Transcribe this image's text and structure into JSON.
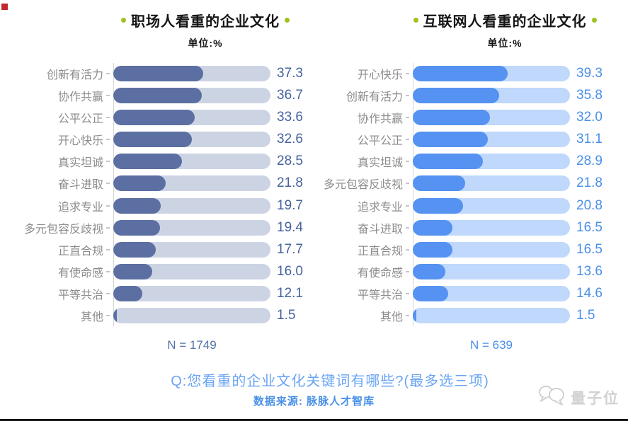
{
  "chart_data": [
    {
      "type": "bar",
      "orientation": "horizontal",
      "title": "职场人看重的企业文化",
      "unit": "单位:%",
      "sample": "N = 1749",
      "categories": [
        "创新有活力",
        "协作共赢",
        "公平公正",
        "开心快乐",
        "真实坦诚",
        "奋斗进取",
        "追求专业",
        "多元包容反歧视",
        "正直合规",
        "有使命感",
        "平等共治",
        "其他"
      ],
      "values": [
        37.3,
        36.7,
        33.6,
        32.6,
        28.5,
        21.8,
        19.7,
        19.4,
        17.7,
        16.0,
        12.1,
        1.5
      ],
      "xlim": [
        0,
        65
      ],
      "legend": "none",
      "grid": false,
      "bar_color": "#5c6fa2",
      "track_color": "#ccd4e4",
      "value_color": "#46639e",
      "sample_color": "#5373a9"
    },
    {
      "type": "bar",
      "orientation": "horizontal",
      "title": "互联网人看重的企业文化",
      "unit": "单位:%",
      "sample": "N = 639",
      "categories": [
        "开心快乐",
        "创新有活力",
        "协作共赢",
        "公平公正",
        "真实坦诚",
        "多元包容反歧视",
        "追求专业",
        "奋斗进取",
        "正直合规",
        "有使命感",
        "平等共治",
        "其他"
      ],
      "values": [
        39.3,
        35.8,
        32.0,
        31.1,
        28.9,
        21.8,
        20.8,
        16.5,
        16.5,
        13.6,
        14.6,
        1.5
      ],
      "xlim": [
        0,
        65
      ],
      "legend": "none",
      "grid": false,
      "bar_color": "#5592f1",
      "track_color": "#bfd8fb",
      "value_color": "#4a90e8",
      "sample_color": "#4a90e8"
    }
  ],
  "footer": {
    "question": "Q:您看重的企业文化关键词有哪些?(最多选三项)",
    "source": "数据来源: 脉脉人才智库",
    "watermark": "量子位"
  },
  "accents": {
    "title_dot_color": "#9fc21d",
    "category_label_color": "#8c8c8c",
    "red_marker_color": "#c1272d"
  }
}
